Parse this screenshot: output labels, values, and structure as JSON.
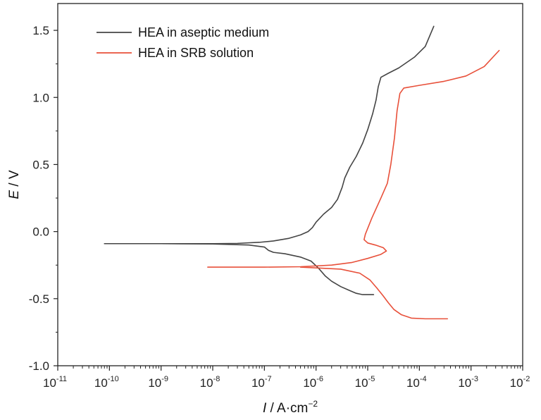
{
  "chart_data": {
    "type": "line",
    "x_scale": "log",
    "xlim": [
      1e-11,
      0.01
    ],
    "ylim": [
      -1.0,
      1.7
    ],
    "x_ticks": [
      "10-11",
      "10-10",
      "10-9",
      "10-8",
      "10-7",
      "10-6",
      "10-5",
      "10-4",
      "10-3",
      "10-2"
    ],
    "x_tick_bases": [
      "10",
      "10",
      "10",
      "10",
      "10",
      "10",
      "10",
      "10",
      "10",
      "10"
    ],
    "x_tick_exps": [
      "-11",
      "-10",
      "-9",
      "-8",
      "-7",
      "-6",
      "-5",
      "-4",
      "-3",
      "-2"
    ],
    "y_ticks": [
      "-1.0",
      "-0.5",
      "0.0",
      "0.5",
      "1.0",
      "1.5"
    ],
    "y_tick_values": [
      -1.0,
      -0.5,
      0.0,
      0.5,
      1.0,
      1.5
    ],
    "xlabel_var": "I",
    "xlabel_rest": " / A·cm",
    "xlabel_exp": "−2",
    "ylabel_var": "E",
    "ylabel_rest": " / V",
    "legend_position": "top-left",
    "series": [
      {
        "name": "HEA in aseptic medium",
        "color": "#444444",
        "points": [
          [
            8e-11,
            -0.09
          ],
          [
            3e-10,
            -0.09
          ],
          [
            1e-09,
            -0.09
          ],
          [
            3e-09,
            -0.09
          ],
          [
            1e-08,
            -0.09
          ],
          [
            3e-08,
            -0.088
          ],
          [
            8e-08,
            -0.08
          ],
          [
            1.5e-07,
            -0.07
          ],
          [
            3e-07,
            -0.05
          ],
          [
            5e-07,
            -0.025
          ],
          [
            7e-07,
            0.0
          ],
          [
            8.5e-07,
            0.03
          ],
          [
            1e-06,
            0.07
          ],
          [
            1.4e-06,
            0.13
          ],
          [
            2e-06,
            0.18
          ],
          [
            2.6e-06,
            0.24
          ],
          [
            3.2e-06,
            0.33
          ],
          [
            3.6e-06,
            0.4
          ],
          [
            4.5e-06,
            0.48
          ],
          [
            6e-06,
            0.56
          ],
          [
            8e-06,
            0.66
          ],
          [
            1e-05,
            0.76
          ],
          [
            1.25e-05,
            0.88
          ],
          [
            1.45e-05,
            0.98
          ],
          [
            1.6e-05,
            1.08
          ],
          [
            1.8e-05,
            1.15
          ],
          [
            2.5e-05,
            1.18
          ],
          [
            4e-05,
            1.22
          ],
          [
            8e-05,
            1.3
          ],
          [
            0.00013,
            1.38
          ],
          [
            0.00019,
            1.53
          ]
        ]
      },
      {
        "name": "HEA in aseptic medium",
        "color": "#444444",
        "points": [
          [
            1e-09,
            -0.09
          ],
          [
            1e-08,
            -0.092
          ],
          [
            5e-08,
            -0.1
          ],
          [
            1e-07,
            -0.115
          ],
          [
            1.2e-07,
            -0.14
          ],
          [
            1.5e-07,
            -0.155
          ],
          [
            2.5e-07,
            -0.165
          ],
          [
            5e-07,
            -0.19
          ],
          [
            8e-07,
            -0.22
          ],
          [
            1.1e-06,
            -0.27
          ],
          [
            1.5e-06,
            -0.33
          ],
          [
            2e-06,
            -0.37
          ],
          [
            3e-06,
            -0.41
          ],
          [
            4.5e-06,
            -0.44
          ],
          [
            6e-06,
            -0.46
          ],
          [
            8e-06,
            -0.47
          ],
          [
            1.3e-05,
            -0.47
          ]
        ]
      },
      {
        "name": "HEA in SRB solution",
        "color": "#e8503a",
        "points": [
          [
            8e-09,
            -0.265
          ],
          [
            1e-07,
            -0.265
          ],
          [
            5e-07,
            -0.262
          ],
          [
            2e-06,
            -0.25
          ],
          [
            5e-06,
            -0.23
          ],
          [
            1e-05,
            -0.2
          ],
          [
            1.8e-05,
            -0.17
          ],
          [
            2.3e-05,
            -0.145
          ],
          [
            2e-05,
            -0.12
          ],
          [
            1.4e-05,
            -0.1
          ],
          [
            1e-05,
            -0.085
          ],
          [
            8.5e-06,
            -0.06
          ],
          [
            9e-06,
            -0.02
          ],
          [
            1.2e-05,
            0.1
          ],
          [
            1.8e-05,
            0.25
          ],
          [
            2.4e-05,
            0.36
          ],
          [
            2.8e-05,
            0.5
          ],
          [
            3.3e-05,
            0.7
          ],
          [
            3.7e-05,
            0.9
          ],
          [
            4.2e-05,
            1.03
          ],
          [
            5e-05,
            1.07
          ],
          [
            0.0001,
            1.09
          ],
          [
            0.0003,
            1.12
          ],
          [
            0.0008,
            1.16
          ],
          [
            0.0018,
            1.23
          ],
          [
            0.0035,
            1.35
          ]
        ]
      },
      {
        "name": "HEA in SRB solution",
        "color": "#e8503a",
        "points": [
          [
            5e-07,
            -0.265
          ],
          [
            3e-06,
            -0.28
          ],
          [
            7e-06,
            -0.31
          ],
          [
            1.1e-05,
            -0.36
          ],
          [
            1.5e-05,
            -0.42
          ],
          [
            2e-05,
            -0.48
          ],
          [
            2.5e-05,
            -0.53
          ],
          [
            3.2e-05,
            -0.58
          ],
          [
            4.5e-05,
            -0.62
          ],
          [
            7e-05,
            -0.645
          ],
          [
            0.00013,
            -0.65
          ],
          [
            0.00035,
            -0.65
          ]
        ]
      }
    ],
    "legend": [
      {
        "name": "HEA in aseptic medium",
        "color": "#444444"
      },
      {
        "name": "HEA in SRB solution",
        "color": "#e8503a"
      }
    ]
  }
}
